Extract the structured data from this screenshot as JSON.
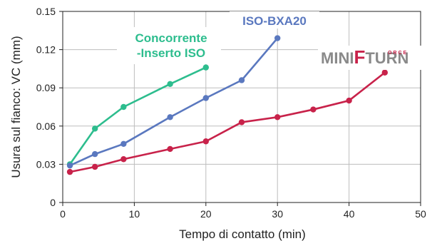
{
  "chart_data": {
    "type": "line",
    "title": "",
    "xlabel": "Tempo di contatto (min)",
    "ylabel": "Usura sul fianco: VC (mm)",
    "xlim": [
      0,
      50
    ],
    "ylim": [
      0,
      0.15
    ],
    "xticks": [
      0,
      10,
      20,
      30,
      40,
      50
    ],
    "yticks": [
      0,
      0.03,
      0.06,
      0.09,
      0.12,
      0.15
    ],
    "xtick_labels": [
      "0",
      "10",
      "20",
      "30",
      "40",
      "50"
    ],
    "ytick_labels": [
      "0",
      "0.03",
      "0.06",
      "0.09",
      "0.12",
      "0.15"
    ],
    "grid": true,
    "legend": "inline labels",
    "series": [
      {
        "name": "Concorrente -Inserto ISO",
        "label_lines": [
          "Concorrente",
          "-Inserto ISO"
        ],
        "color": "#2dbd8e",
        "x": [
          1,
          4.5,
          8.5,
          15,
          20
        ],
        "y": [
          0.03,
          0.058,
          0.075,
          0.093,
          0.106
        ]
      },
      {
        "name": "ISO-BXA20",
        "label_lines": [
          "ISO-BXA20"
        ],
        "color": "#5a78bf",
        "x": [
          1,
          4.5,
          8.5,
          15,
          20,
          25,
          30
        ],
        "y": [
          0.029,
          0.038,
          0.046,
          0.067,
          0.082,
          0.096,
          0.129
        ]
      },
      {
        "name": "MINIFORCE TURN",
        "label_lines": [],
        "color": "#c8224a",
        "x": [
          1,
          4.5,
          8.5,
          15,
          20,
          25,
          30,
          35,
          40,
          45
        ],
        "y": [
          0.024,
          0.028,
          0.034,
          0.042,
          0.048,
          0.063,
          0.067,
          0.073,
          0.08,
          0.102
        ]
      }
    ]
  },
  "logo": {
    "text_left": "MINI",
    "text_mid": "F",
    "text_small": "ORCE",
    "text_right": "TURN",
    "gray": "#8a8a8a",
    "red": "#c8224a"
  },
  "colors": {
    "axis": "#222222",
    "grid": "#bdbdbd"
  }
}
